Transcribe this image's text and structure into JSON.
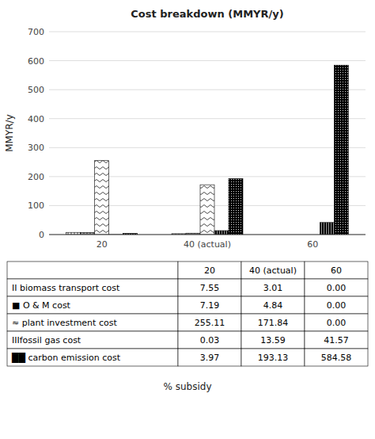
{
  "chart_data": {
    "type": "bar",
    "title": "Cost breakdown (MMYR/y)",
    "xlabel": "% subsidy",
    "ylabel": "MMYR/y",
    "categories": [
      "20",
      "40 (actual)",
      "60"
    ],
    "series": [
      {
        "name": "biomass transport cost",
        "symbol": "II ",
        "color": "white",
        "values": [
          7.55,
          3.01,
          0
        ],
        "value_labels": [
          "7.55",
          "3.01",
          "0.00"
        ]
      },
      {
        "name": "O & M cost",
        "symbol": "■ ",
        "color": "#aaaaaa",
        "values": [
          7.19,
          4.84,
          0
        ],
        "value_labels": [
          "7.19",
          "4.84",
          "0.00"
        ]
      },
      {
        "name": "plant investment cost",
        "symbol": "≈ ",
        "color": "white",
        "values": [
          255.11,
          171.84,
          0
        ],
        "value_labels": [
          "255.11",
          "171.84",
          "0.00"
        ]
      },
      {
        "name": "fossil gas cost",
        "symbol": "III",
        "color": "black",
        "values": [
          0.03,
          13.59,
          41.57
        ],
        "value_labels": [
          "0.03",
          "13.59",
          "41.57"
        ]
      },
      {
        "name": "carbon emission cost",
        "symbol": "██ ",
        "color": "black",
        "values": [
          3.97,
          193.13,
          584.58
        ],
        "value_labels": [
          "3.97",
          "193.13",
          "584.58"
        ]
      }
    ],
    "ylim": [
      0,
      700
    ],
    "yticks": [
      0,
      100,
      200,
      300,
      400,
      500,
      600,
      700
    ],
    "grid": true
  }
}
